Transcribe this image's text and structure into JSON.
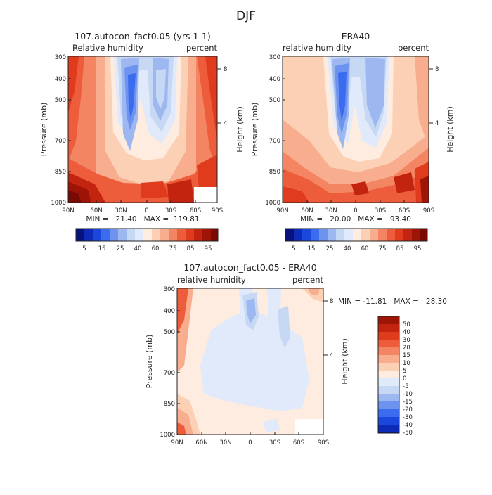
{
  "figure": {
    "title": "DJF"
  },
  "colors": {
    "full_palette": [
      "#08127e",
      "#0d2bb7",
      "#1b47dd",
      "#3b6cf0",
      "#6d93ee",
      "#9db8f0",
      "#c6d8f4",
      "#e0eafa",
      "#fdecdf",
      "#fbd0b5",
      "#f8ae8e",
      "#f38562",
      "#ed5d3c",
      "#df3b1c",
      "#c2240f",
      "#9e1407",
      "#7a0a04"
    ],
    "diff_palette": [
      "#08127e",
      "#0d2bb7",
      "#1b47dd",
      "#3b6cf0",
      "#6d93ee",
      "#9db8f0",
      "#c6d8f4",
      "#e0eafa",
      "#fdecdf",
      "#fbd0b5",
      "#f8ae8e",
      "#f38562",
      "#ed5d3c",
      "#df3b1c",
      "#c2240f",
      "#9e1407"
    ]
  },
  "chart_data": [
    {
      "type": "heatmap",
      "title": "107.autocon_fact0.05 (yrs 1-1)",
      "left_label": "Relative humidity",
      "right_label": "percent",
      "ylabel": "Pressure (mb)",
      "y2label": "Height (km)",
      "xticks": [
        "90N",
        "60N",
        "30N",
        "0",
        "30S",
        "60S",
        "90S"
      ],
      "yticks": [
        "300",
        "400",
        "500",
        "700",
        "850",
        "1000"
      ],
      "y2ticks": [
        "8",
        "4"
      ],
      "stats": "MIN =   21.40   MAX =  119.81",
      "min": 21.4,
      "max": 119.81,
      "colorbar_labels": [
        "5",
        "15",
        "25",
        "40",
        "60",
        "75",
        "85",
        "95"
      ]
    },
    {
      "type": "heatmap",
      "title": "ERA40",
      "left_label": "relative humidity",
      "right_label": "percent",
      "ylabel": "Pressure (mb)",
      "y2label": "Height (km)",
      "xticks": [
        "90N",
        "60N",
        "30N",
        "0",
        "30S",
        "60S",
        "90S"
      ],
      "yticks": [
        "300",
        "400",
        "500",
        "700",
        "850",
        "1000"
      ],
      "y2ticks": [
        "8",
        "4"
      ],
      "stats": "MIN =   20.00   MAX =   93.40",
      "min": 20.0,
      "max": 93.4,
      "colorbar_labels": [
        "5",
        "15",
        "25",
        "40",
        "60",
        "75",
        "85",
        "95"
      ]
    },
    {
      "type": "heatmap",
      "title": "107.autocon_fact0.05 - ERA40",
      "left_label": "relative humidity",
      "right_label": "percent",
      "ylabel": "Pressure (mb)",
      "y2label": "Height (km)",
      "xticks": [
        "90N",
        "60N",
        "30N",
        "0",
        "30S",
        "60S",
        "90S"
      ],
      "yticks": [
        "300",
        "400",
        "500",
        "700",
        "850",
        "1000"
      ],
      "y2ticks": [
        "8",
        "4"
      ],
      "stats": "MIN = -11.81   MAX =   28.30",
      "min": -11.81,
      "max": 28.3,
      "colorbar_labels": [
        "50",
        "40",
        "30",
        "20",
        "15",
        "10",
        "5",
        "0",
        "-5",
        "-10",
        "-15",
        "-20",
        "-30",
        "-40",
        "-50"
      ]
    }
  ]
}
